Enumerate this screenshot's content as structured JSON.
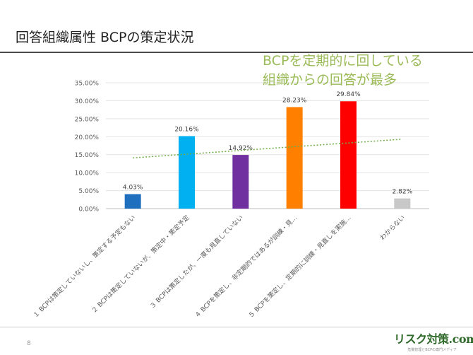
{
  "slide": {
    "title": "回答組織属性 BCPの策定状況",
    "callout_line1": "BCPを定期的に回している",
    "callout_line2": "組織からの回答が最多",
    "page_number": "8",
    "logo_text": "リスク対策.com",
    "logo_subtext": "危機管理とBCPの専門メディア"
  },
  "chart_data": {
    "type": "bar",
    "title": "",
    "xlabel": "",
    "ylabel": "",
    "ylim": [
      0,
      35
    ],
    "y_ticks": [
      0,
      5,
      10,
      15,
      20,
      25,
      30,
      35
    ],
    "y_tick_labels": [
      "0.00%",
      "5.00%",
      "10.00%",
      "15.00%",
      "20.00%",
      "25.00%",
      "30.00%",
      "35.00%"
    ],
    "categories": [
      "１ BCPは策定していないし、策定する予定もない",
      "２ BCPは策定していないが、策定中・策定予定",
      "３ BCPは策定したが、一度も見直していない",
      "４ BCPを策定し、非定期的ではあるが訓練・見…",
      "５ BCPを策定し、定期的に訓練・見直しを実施…",
      "わからない"
    ],
    "values": [
      4.03,
      20.16,
      14.92,
      28.23,
      29.84,
      2.82
    ],
    "value_labels": [
      "4.03%",
      "20.16%",
      "14.92%",
      "28.23%",
      "29.84%",
      "2.82%"
    ],
    "colors": [
      "#1f6fbf",
      "#00b0f0",
      "#7030a0",
      "#ff7f00",
      "#ff0000",
      "#c8c8c8"
    ],
    "trendline": {
      "type": "linear",
      "start": 14.1,
      "end": 19.3,
      "color": "#70ad47"
    },
    "grid": true
  }
}
